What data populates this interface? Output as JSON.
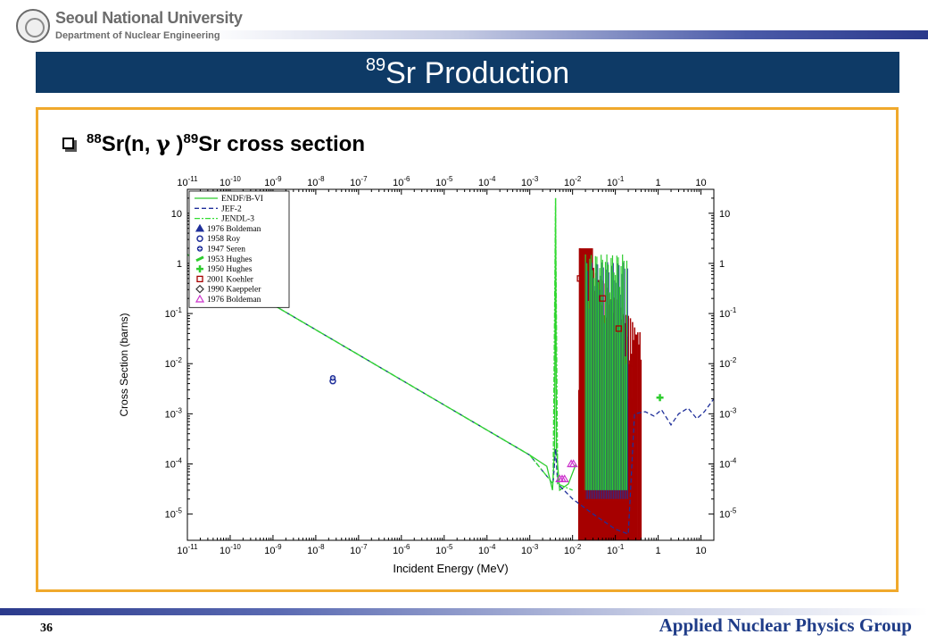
{
  "header": {
    "university": "Seoul National University",
    "department": "Department of Nuclear Engineering",
    "logo_icon": "university-seal-icon"
  },
  "slide": {
    "title_sup": "89",
    "title_main": "Sr Production",
    "bullet": {
      "sup1": "88",
      "part1": "Sr(n, ",
      "gamma": "γ",
      "part2": " )",
      "sup2": "89",
      "part3": "Sr cross section"
    },
    "page_number": "36",
    "group_name": "Applied Nuclear Physics Group"
  },
  "colors": {
    "title_bar": "#0e3a66",
    "box_border": "#f0a92c",
    "group_text": "#1f3c88",
    "endf": "#2ecc2e",
    "jef": "#1f2f9a",
    "jendl": "#33dd33",
    "resonance_fill": "#a60000"
  },
  "chart_data": {
    "type": "line",
    "xlabel": "Incident Energy (MeV)",
    "ylabel": "Cross Section (barns)",
    "x_scale": "log",
    "y_scale": "log",
    "xlim": [
      1e-11,
      20
    ],
    "ylim": [
      3e-06,
      30
    ],
    "grid": false,
    "legend_position": "top-left",
    "x_tick_labels": [
      {
        "mant": "10",
        "exp": "-11"
      },
      {
        "mant": "10",
        "exp": "-10"
      },
      {
        "mant": "10",
        "exp": "-9"
      },
      {
        "mant": "10",
        "exp": "-8"
      },
      {
        "mant": "10",
        "exp": "-7"
      },
      {
        "mant": "10",
        "exp": "-6"
      },
      {
        "mant": "10",
        "exp": "-5"
      },
      {
        "mant": "10",
        "exp": "-4"
      },
      {
        "mant": "10",
        "exp": "-3"
      },
      {
        "mant": "10",
        "exp": "-2"
      },
      {
        "mant": "10",
        "exp": "-1"
      },
      {
        "mant": "1",
        "exp": ""
      },
      {
        "mant": "10",
        "exp": ""
      }
    ],
    "y_tick_labels": [
      {
        "mant": "10",
        "exp": ""
      },
      {
        "mant": "1",
        "exp": ""
      },
      {
        "mant": "10",
        "exp": "-1"
      },
      {
        "mant": "10",
        "exp": "-2"
      },
      {
        "mant": "10",
        "exp": "-3"
      },
      {
        "mant": "10",
        "exp": "-4"
      },
      {
        "mant": "10",
        "exp": "-5"
      }
    ],
    "series": [
      {
        "name": "ENDF/B-VI",
        "style": "solid",
        "points": [
          [
            1e-11,
            1.5
          ],
          [
            1e-09,
            0.15
          ],
          [
            1e-07,
            0.015
          ],
          [
            1e-05,
            0.0015
          ],
          [
            0.001,
            0.00015
          ],
          [
            0.0025,
            9e-05
          ],
          [
            0.0034,
            3e-05
          ],
          [
            0.0038,
            0.0002
          ],
          [
            0.004,
            20
          ],
          [
            0.0042,
            0.0002
          ],
          [
            0.005,
            3e-05
          ],
          [
            0.008,
            4e-05
          ],
          [
            0.012,
            0.0001
          ]
        ]
      },
      {
        "name": "JEF-2",
        "style": "dashed",
        "points": [
          [
            1e-11,
            1.5
          ],
          [
            1e-09,
            0.15
          ],
          [
            1e-07,
            0.015
          ],
          [
            1e-05,
            0.0015
          ],
          [
            0.001,
            0.00015
          ],
          [
            0.0035,
            4e-05
          ],
          [
            0.004,
            0.0002
          ],
          [
            0.0045,
            4e-05
          ],
          [
            0.01,
            2e-05
          ],
          [
            0.03,
            1e-05
          ],
          [
            0.1,
            5e-06
          ],
          [
            0.2,
            4e-06
          ],
          [
            0.28,
            0.001
          ],
          [
            0.5,
            0.0011
          ],
          [
            0.8,
            0.0009
          ],
          [
            1.2,
            0.0012
          ],
          [
            2,
            0.0006
          ],
          [
            3,
            0.001
          ],
          [
            5,
            0.0013
          ],
          [
            8,
            0.0008
          ],
          [
            12,
            0.0011
          ],
          [
            20,
            0.002
          ]
        ]
      },
      {
        "name": "JENDL-3",
        "style": "dash-dot",
        "points": [
          [
            1e-11,
            1.5
          ],
          [
            1e-09,
            0.15
          ],
          [
            1e-07,
            0.015
          ],
          [
            1e-05,
            0.0015
          ],
          [
            0.001,
            0.00015
          ],
          [
            0.0035,
            4e-05
          ],
          [
            0.004,
            20
          ],
          [
            0.0045,
            4e-05
          ],
          [
            0.01,
            3e-05
          ]
        ]
      }
    ],
    "experiments": [
      {
        "name": "1976 Boldeman",
        "marker": "triangle",
        "color": "#1f2f9a",
        "points": []
      },
      {
        "name": "1958 Roy",
        "marker": "circle",
        "color": "#1f2f9a",
        "points": [
          [
            2.5e-08,
            0.0045
          ]
        ]
      },
      {
        "name": "1947 Seren",
        "marker": "cross-circle",
        "color": "#1f2f9a",
        "points": [
          [
            2.5e-08,
            0.0052
          ]
        ]
      },
      {
        "name": "1953 Hughes",
        "marker": "slash",
        "color": "#2ecc2e",
        "points": []
      },
      {
        "name": "1950 Hughes",
        "marker": "plus",
        "color": "#2ecc2e",
        "points": [
          [
            1.1,
            0.0021
          ]
        ]
      },
      {
        "name": "2001 Koehler",
        "marker": "square",
        "color": "#a60000",
        "points": [
          [
            0.015,
            0.5
          ],
          [
            0.05,
            0.2
          ],
          [
            0.12,
            0.05
          ],
          [
            0.25,
            0.01
          ]
        ]
      },
      {
        "name": "1990 Kaeppeler",
        "marker": "diamond",
        "color": "#333333",
        "points": []
      },
      {
        "name": "1976 Boldeman",
        "marker": "triangle-open",
        "color": "#cc33cc",
        "points": [
          [
            0.005,
            5e-05
          ],
          [
            0.0057,
            5e-05
          ],
          [
            0.0065,
            5e-05
          ],
          [
            0.0093,
            0.0001
          ],
          [
            0.0105,
            0.0001
          ]
        ]
      }
    ]
  }
}
